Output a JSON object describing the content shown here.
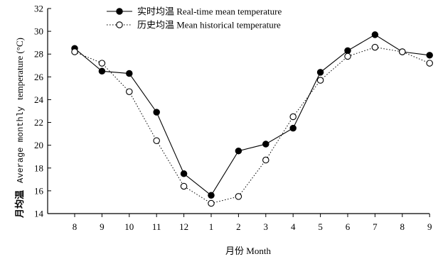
{
  "chart_data": {
    "type": "line",
    "title": "",
    "xlabel": "月份 Month",
    "ylabel": {
      "zh": "月均温",
      "en_mono": "Average monthly",
      "en_serif": "temperature (°C)"
    },
    "categories": [
      "8",
      "9",
      "10",
      "11",
      "12",
      "1",
      "2",
      "3",
      "4",
      "5",
      "6",
      "7",
      "8",
      "9"
    ],
    "ylim": [
      14,
      32
    ],
    "yticks": [
      "14",
      "16",
      "18",
      "20",
      "22",
      "24",
      "26",
      "28",
      "30",
      "32"
    ],
    "grid": false,
    "legend_position": "top-center",
    "series": [
      {
        "name": "实时均温 Real-time mean temperature",
        "marker": "filled-circle",
        "line": "solid",
        "color": "#000000",
        "values": [
          28.5,
          26.5,
          26.3,
          22.9,
          17.5,
          15.6,
          19.5,
          20.1,
          21.5,
          26.4,
          28.3,
          29.7,
          28.2,
          27.9
        ]
      },
      {
        "name": "历史均温 Mean historical temperature",
        "marker": "open-circle",
        "line": "dotted",
        "color": "#000000",
        "values": [
          28.2,
          27.2,
          24.7,
          20.4,
          16.4,
          14.9,
          15.5,
          18.7,
          22.5,
          25.7,
          27.8,
          28.6,
          28.2,
          27.2
        ]
      }
    ]
  }
}
